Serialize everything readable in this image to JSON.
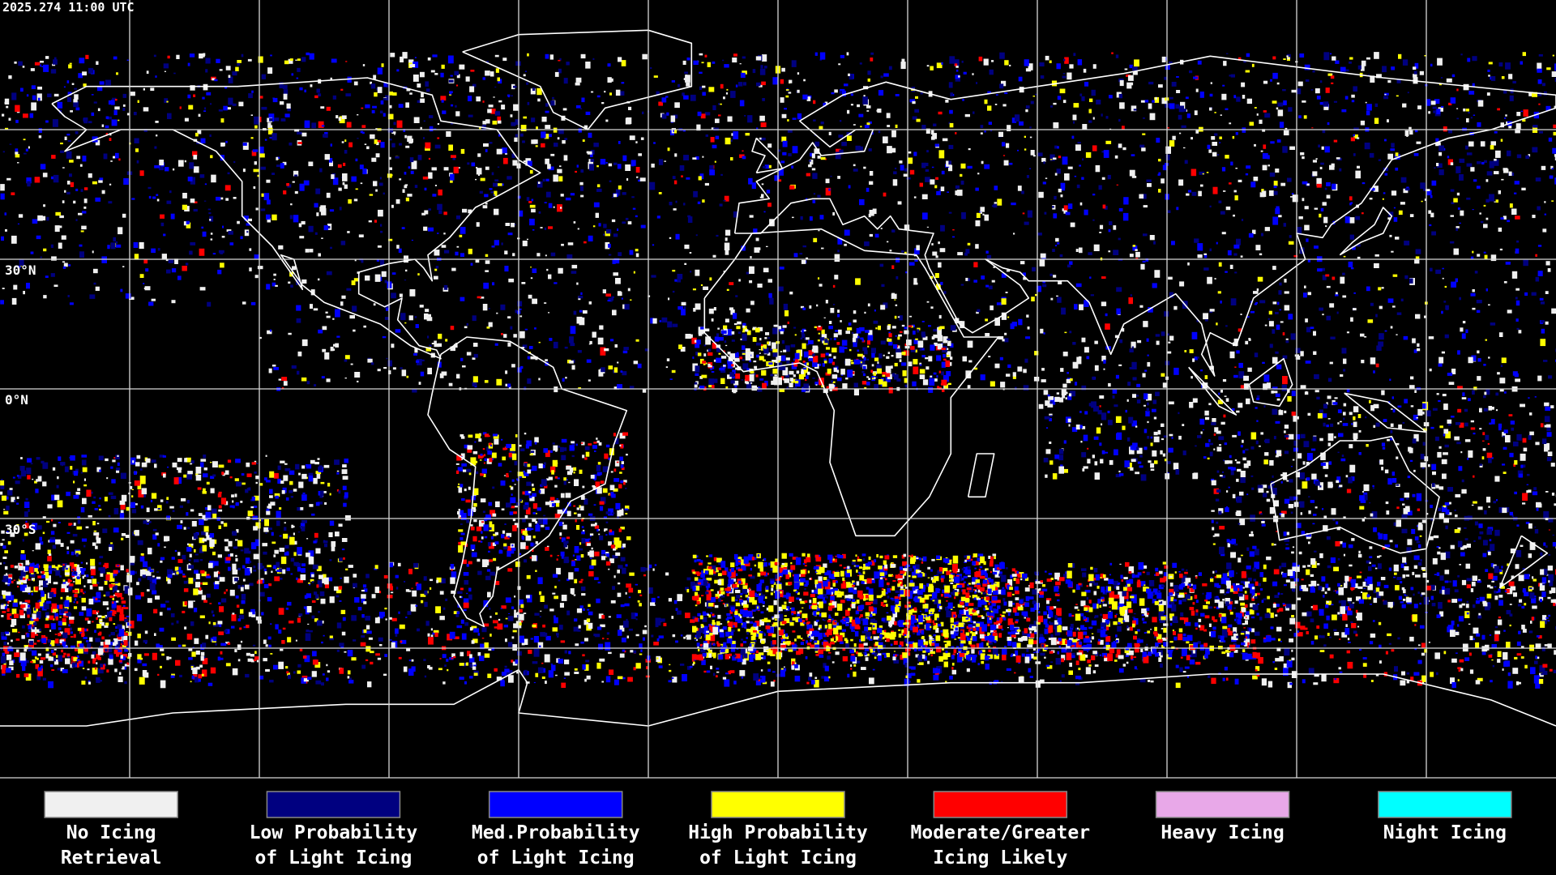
{
  "map": {
    "timestamp": "2025.274 11:00 UTC",
    "lat_ticks": [
      {
        "value": 30,
        "label": "30°N"
      },
      {
        "value": 0,
        "label": "0°N"
      },
      {
        "value": -30,
        "label": "30°S"
      }
    ]
  },
  "legend": [
    {
      "color": "#f0f0f0",
      "label": [
        "No Icing",
        "Retrieval"
      ]
    },
    {
      "color": "#000080",
      "label": [
        "Low Probability",
        "of Light Icing"
      ]
    },
    {
      "color": "#0000ff",
      "label": [
        "Med.Probability",
        "of Light Icing"
      ]
    },
    {
      "color": "#ffff00",
      "label": [
        "High Probability",
        "of Light Icing"
      ]
    },
    {
      "color": "#ff0000",
      "label": [
        "Moderate/Greater",
        "Icing Likely"
      ]
    },
    {
      "color": "#e8a8e8",
      "label": [
        "Heavy Icing"
      ]
    },
    {
      "color": "#00ffff",
      "label": [
        "Night Icing"
      ]
    }
  ]
}
